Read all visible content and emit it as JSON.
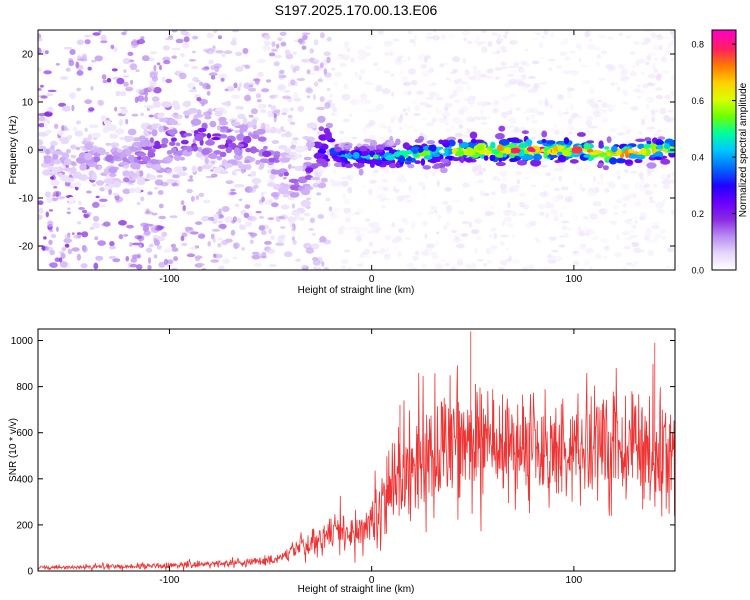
{
  "figure_title": "S197.2025.170.00.13.E06",
  "chart_data": [
    {
      "type": "heatmap",
      "title": "S197.2025.170.00.13.E06",
      "xlabel": "Height of straight line (km)",
      "ylabel": "Frequency (Hz)",
      "xlim": [
        -165,
        150
      ],
      "ylim": [
        -25,
        25
      ],
      "x_ticks": [
        -100,
        0,
        100
      ],
      "x_tick_labels": [
        "-100",
        "0",
        "100"
      ],
      "y_ticks": [
        -20,
        -10,
        0,
        10,
        20
      ],
      "y_tick_labels": [
        "-20",
        "-10",
        "0",
        "10",
        "20"
      ],
      "colorbar": {
        "label": "Normalized spectral amplitude",
        "range": [
          0.0,
          0.85
        ],
        "ticks": [
          0.0,
          0.2,
          0.4,
          0.6,
          0.8
        ],
        "tick_labels": [
          "0.0",
          "0.2",
          "0.4",
          "0.6",
          "0.8"
        ],
        "colormap": [
          "#ffffff",
          "#e6d5fb",
          "#b98cf2",
          "#8a2be2",
          "#6a00ff",
          "#2200ff",
          "#0066ff",
          "#00c8ff",
          "#00ff9c",
          "#6eff00",
          "#d9ff00",
          "#ffd000",
          "#ff7a00",
          "#ff2060",
          "#ff00c8"
        ]
      },
      "ridge": {
        "x": [
          -165,
          -135,
          -120,
          -100,
          -85,
          -70,
          -55,
          -45,
          -40,
          -35,
          -30,
          -25,
          -15,
          0,
          20,
          40,
          60,
          80,
          100,
          120,
          150
        ],
        "frequency_hz": [
          -1.0,
          -2.0,
          -2.5,
          2.0,
          3.0,
          1.5,
          0.5,
          -4.0,
          -6.0,
          -9.0,
          -2.0,
          1.0,
          -1.5,
          -1.5,
          -1.0,
          0.0,
          0.0,
          0.0,
          0.0,
          -1.0,
          0.5
        ],
        "amplitude": [
          0.1,
          0.12,
          0.14,
          0.2,
          0.22,
          0.2,
          0.18,
          0.16,
          0.15,
          0.15,
          0.22,
          0.3,
          0.4,
          0.45,
          0.55,
          0.6,
          0.75,
          0.8,
          0.72,
          0.78,
          0.6
        ]
      }
    },
    {
      "type": "line",
      "xlabel": "Height of straight line (km)",
      "ylabel": "SNR (10 * v/v)",
      "xlim": [
        -165,
        150
      ],
      "ylim": [
        0,
        1050
      ],
      "x_ticks": [
        -100,
        0,
        100
      ],
      "x_tick_labels": [
        "-100",
        "0",
        "100"
      ],
      "y_ticks": [
        0,
        200,
        400,
        600,
        800,
        1000
      ],
      "y_tick_labels": [
        "0",
        "200",
        "400",
        "600",
        "800",
        "1000"
      ],
      "series": [
        {
          "color": "#ee3333",
          "envelope_x": [
            -165,
            -140,
            -120,
            -100,
            -80,
            -60,
            -45,
            -35,
            -25,
            -15,
            -5,
            0,
            5,
            10,
            15,
            20,
            30,
            40,
            50,
            60,
            70,
            80,
            90,
            100,
            110,
            120,
            130,
            140,
            150
          ],
          "envelope_mean": [
            15,
            18,
            20,
            25,
            30,
            35,
            55,
            110,
            140,
            170,
            190,
            220,
            280,
            360,
            420,
            460,
            520,
            560,
            560,
            560,
            540,
            540,
            545,
            540,
            560,
            540,
            520,
            520,
            520
          ],
          "envelope_spread": [
            8,
            10,
            12,
            14,
            16,
            18,
            25,
            55,
            70,
            90,
            110,
            130,
            160,
            200,
            240,
            260,
            280,
            280,
            270,
            250,
            230,
            220,
            220,
            210,
            220,
            230,
            230,
            240,
            250
          ],
          "peaks": [
            {
              "x": 49,
              "y": 1040
            },
            {
              "x": 140,
              "y": 990
            },
            {
              "x": 14,
              "y": 720
            }
          ]
        }
      ]
    }
  ]
}
